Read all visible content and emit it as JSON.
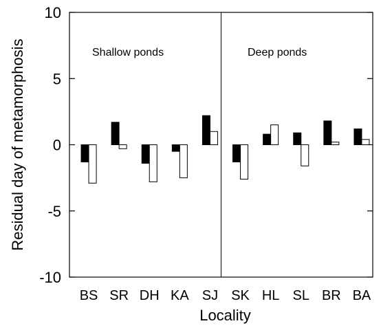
{
  "chart_data": {
    "type": "bar",
    "ylabel": "Residual day of metamorphosis",
    "xlabel": "Locality",
    "ylim": [
      -10,
      10
    ],
    "yticks": [
      10,
      5,
      0,
      -5,
      -10
    ],
    "ytick_labels": [
      "10",
      "5",
      "0",
      "-5",
      "-10"
    ],
    "categories": [
      "BS",
      "SR",
      "DH",
      "KA",
      "SJ",
      "SK",
      "HL",
      "SL",
      "BR",
      "BA"
    ],
    "series": [
      {
        "values": [
          -1.3,
          1.7,
          -1.4,
          -0.5,
          2.2,
          -1.3,
          0.8,
          0.9,
          1.8,
          1.2
        ]
      },
      {
        "values": [
          -2.9,
          -0.3,
          -2.8,
          -2.5,
          1.0,
          -2.6,
          1.5,
          -1.6,
          0.2,
          0.4
        ]
      }
    ],
    "series_colors": [
      "#000000",
      "#ffffff"
    ],
    "group_labels": [
      "Shallow ponds",
      "Deep ponds"
    ],
    "divider_between": [
      4,
      5
    ],
    "legend": "none",
    "grid": false
  }
}
